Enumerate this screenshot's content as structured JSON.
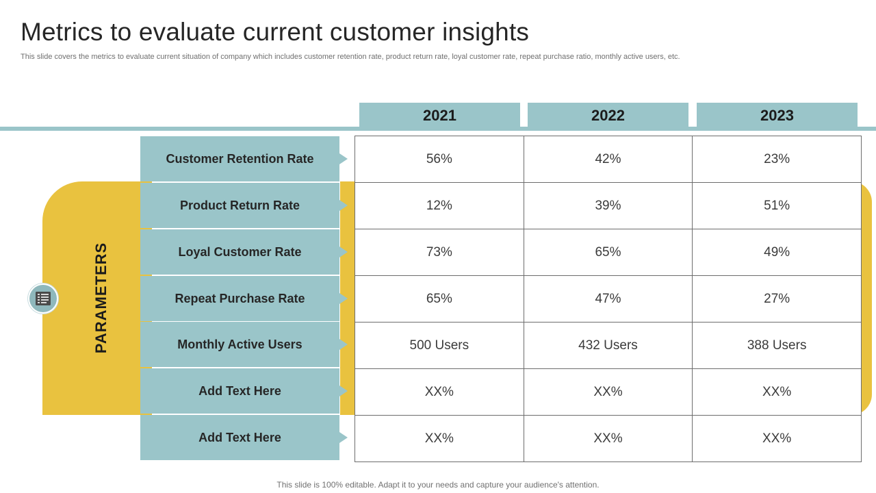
{
  "title": "Metrics to evaluate current customer insights",
  "subtitle": "This slide covers the metrics to evaluate current situation of company which includes customer retention rate, product return rate, loyal customer rate, repeat purchase ratio, monthly active users, etc.",
  "years": [
    "2021",
    "2022",
    "2023"
  ],
  "parameters_label": "PARAMETERS",
  "icon": "checklist-icon",
  "rows": [
    {
      "label": "Customer Retention Rate",
      "values": [
        "56%",
        "42%",
        "23%"
      ]
    },
    {
      "label": "Product Return Rate",
      "values": [
        "12%",
        "39%",
        "51%"
      ]
    },
    {
      "label": "Loyal Customer Rate",
      "values": [
        "73%",
        "65%",
        "49%"
      ]
    },
    {
      "label": "Repeat Purchase Rate",
      "values": [
        "65%",
        "47%",
        "27%"
      ]
    },
    {
      "label": "Monthly Active Users",
      "values": [
        "500 Users",
        "432 Users",
        "388 Users"
      ]
    },
    {
      "label": "Add Text Here",
      "values": [
        "XX%",
        "XX%",
        "XX%"
      ]
    },
    {
      "label": "Add Text Here",
      "values": [
        "XX%",
        "XX%",
        "XX%"
      ]
    }
  ],
  "colors": {
    "teal": "#9ac5c9",
    "yellow": "#e9c23f"
  },
  "footer": "This slide is 100% editable. Adapt it to your needs and capture your audience's attention."
}
